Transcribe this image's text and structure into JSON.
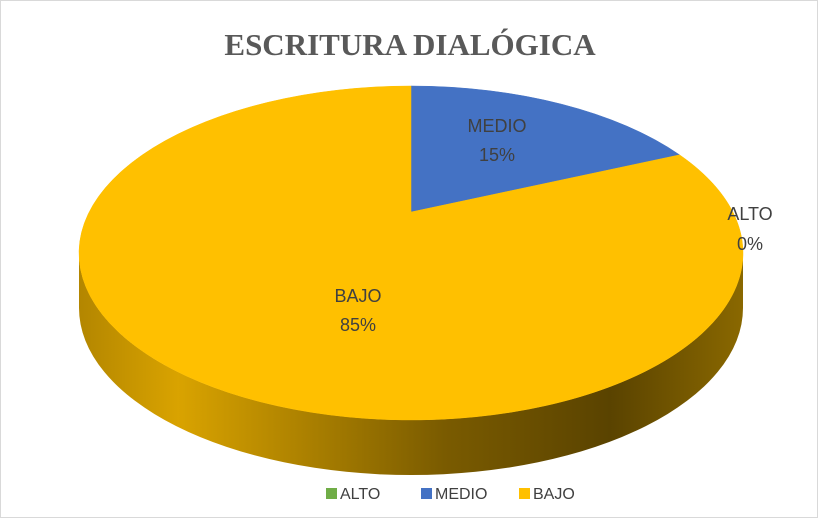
{
  "chart_data": {
    "type": "pie",
    "title": "ESCRITURA DIALÓGICA",
    "categories": [
      "ALTO",
      "MEDIO",
      "BAJO"
    ],
    "values": [
      0,
      15,
      85
    ],
    "value_labels": [
      "0%",
      "15%",
      "85%"
    ],
    "colors": [
      "#70ad47",
      "#4472c4",
      "#ffc000"
    ],
    "legend": "bottom"
  }
}
